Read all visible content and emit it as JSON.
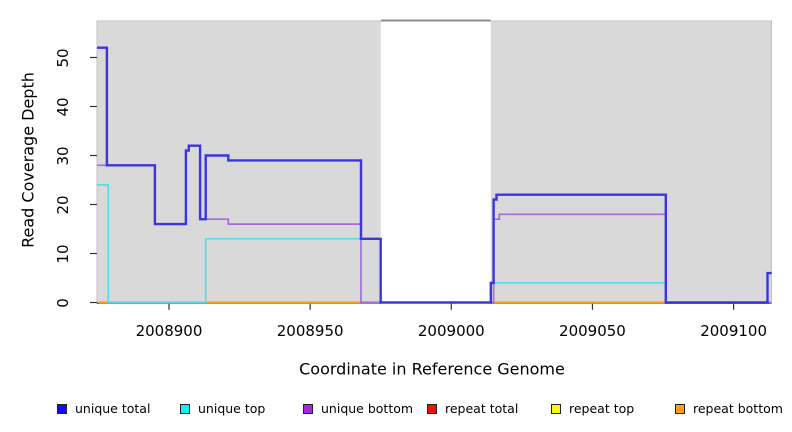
{
  "chart_data": {
    "type": "line",
    "step": "after",
    "xlabel": "Coordinate in Reference Genome",
    "ylabel": "Read Coverage Depth",
    "xlim": [
      2008874.5,
      2009113.5
    ],
    "ylim": [
      0,
      57.5
    ],
    "grid": false,
    "plot_background": "#d9d9d9",
    "gap_region": {
      "x_start": 2008975,
      "x_end": 2009014,
      "fill": "#ffffff",
      "top_border_color": "#8c8c8c"
    },
    "x_ticks": [
      {
        "value": 2008900,
        "label": "2008900"
      },
      {
        "value": 2008950,
        "label": "2008950"
      },
      {
        "value": 2009000,
        "label": "2009000"
      },
      {
        "value": 2009050,
        "label": "2009050"
      },
      {
        "value": 2009100,
        "label": "2009100"
      }
    ],
    "y_ticks": [
      {
        "value": 0,
        "label": "0"
      },
      {
        "value": 10,
        "label": "10"
      },
      {
        "value": 20,
        "label": "20"
      },
      {
        "value": 30,
        "label": "30"
      },
      {
        "value": 40,
        "label": "40"
      },
      {
        "value": 50,
        "label": "50"
      }
    ],
    "series": [
      {
        "name": "unique total",
        "line_color": "#3a35e0",
        "line_width": 2.4,
        "segments": [
          [
            [
              2008874.5,
              52
            ],
            [
              2008878,
              28
            ],
            [
              2008895,
              16
            ],
            [
              2008906,
              31
            ],
            [
              2008907,
              32
            ],
            [
              2008911,
              17
            ],
            [
              2008913,
              30
            ],
            [
              2008921,
              29
            ],
            [
              2008968,
              13
            ],
            [
              2008975,
              0
            ],
            [
              2009014,
              4
            ],
            [
              2009015,
              21
            ],
            [
              2009016,
              22
            ],
            [
              2009076,
              0
            ],
            [
              2009112,
              6
            ],
            [
              2009113.5,
              6
            ]
          ]
        ]
      },
      {
        "name": "unique top",
        "line_color": "#55dde8",
        "line_width": 1.7,
        "segments": [
          [
            [
              2008874.5,
              24
            ],
            [
              2008878.5,
              0
            ],
            [
              2008913,
              13
            ],
            [
              2008975,
              0
            ]
          ],
          [
            [
              2009014,
              4
            ],
            [
              2009076,
              0
            ]
          ]
        ]
      },
      {
        "name": "unique bottom",
        "line_color": "#a56bdc",
        "line_width": 1.7,
        "segments": [
          [
            [
              2008874.5,
              28
            ],
            [
              2008895,
              16
            ],
            [
              2008906,
              31
            ],
            [
              2008907,
              32
            ],
            [
              2008911,
              17
            ],
            [
              2008921,
              16
            ],
            [
              2008968,
              0
            ],
            [
              2009015,
              17
            ],
            [
              2009017,
              18
            ],
            [
              2009076,
              0
            ],
            [
              2009113.5,
              0
            ]
          ]
        ]
      },
      {
        "name": "repeat total",
        "line_color": "#e8140c",
        "line_width": 1.7,
        "segments": []
      },
      {
        "name": "repeat top",
        "line_color": "#fbf51b",
        "line_width": 1.7,
        "segments": []
      },
      {
        "name": "repeat bottom",
        "line_color": "#ffa013",
        "line_width": 2.2,
        "segments": [
          [
            [
              2008875,
              0
            ],
            [
              2008975,
              0
            ]
          ],
          [
            [
              2009014,
              0
            ],
            [
              2009076,
              0
            ]
          ]
        ]
      }
    ],
    "draw_order": [
      5,
      4,
      3,
      1,
      2,
      0
    ],
    "legend": [
      {
        "label": "unique total",
        "swatch_color": "#1111ee"
      },
      {
        "label": "unique top",
        "swatch_color": "#00f5f5"
      },
      {
        "label": "unique bottom",
        "swatch_color": "#a228e8"
      },
      {
        "label": "repeat total",
        "swatch_color": "#e8140c"
      },
      {
        "label": "repeat top",
        "swatch_color": "#fbf51b"
      },
      {
        "label": "repeat bottom",
        "swatch_color": "#ffa013"
      }
    ],
    "legend_position": "bottom"
  }
}
